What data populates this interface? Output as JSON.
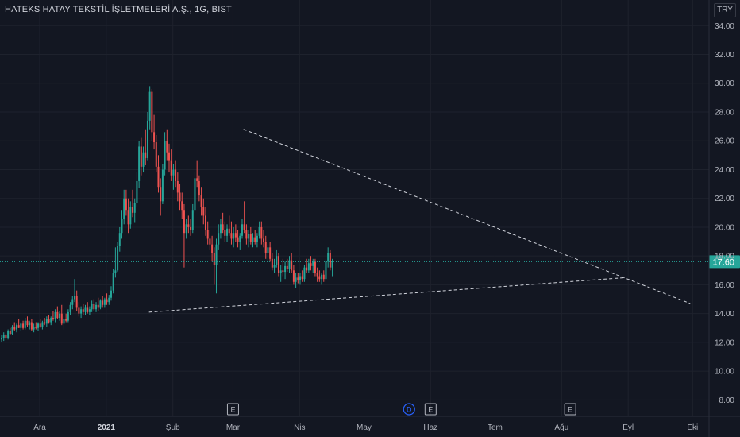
{
  "header": {
    "title": "HATEKS HATAY TEKSTİL İŞLETMELERİ A.Ş., 1G, BIST",
    "currency": "TRY"
  },
  "chart_data": {
    "type": "candlestick",
    "title": "HATEKS HATAY TEKSTİL İŞLETMELERİ A.Ş., 1G, BIST",
    "ylim": [
      7,
      35
    ],
    "yticks": [
      "34.00",
      "32.00",
      "30.00",
      "28.00",
      "26.00",
      "24.00",
      "22.00",
      "20.00",
      "18.00",
      "16.00",
      "14.00",
      "12.00",
      "10.00",
      "8.00"
    ],
    "ytick_values": [
      34,
      32,
      30,
      28,
      26,
      24,
      22,
      20,
      18,
      16,
      14,
      12,
      10,
      8
    ],
    "xticks": [
      {
        "label": "Ara",
        "day": 0,
        "bold": false
      },
      {
        "label": "2021",
        "day": 31,
        "bold": true
      },
      {
        "label": "Şub",
        "day": 62,
        "bold": false
      },
      {
        "label": "Mar",
        "day": 90,
        "bold": false
      },
      {
        "label": "Nis",
        "day": 121,
        "bold": false
      },
      {
        "label": "May",
        "day": 151,
        "bold": false
      },
      {
        "label": "Haz",
        "day": 182,
        "bold": false
      },
      {
        "label": "Tem",
        "day": 212,
        "bold": false
      },
      {
        "label": "Ağu",
        "day": 243,
        "bold": false
      },
      {
        "label": "Eyl",
        "day": 274,
        "bold": false
      },
      {
        "label": "Eki",
        "day": 304,
        "bold": false
      }
    ],
    "last_price": "17.60",
    "last_value": 17.6,
    "up_color": "#26a69a",
    "down_color": "#ef5350",
    "trendlines": [
      {
        "from": [
          52,
          14.1
        ],
        "to": [
          274,
          16.5
        ]
      },
      {
        "from": [
          96,
          26.8
        ],
        "to": [
          304,
          14.7
        ]
      }
    ],
    "event_markers": [
      {
        "label": "E",
        "day": 90
      },
      {
        "label": "D",
        "day": 172
      },
      {
        "label": "E",
        "day": 182
      },
      {
        "label": "E",
        "day": 247
      }
    ],
    "candles": [
      [
        -17,
        12.2,
        12.5,
        12.0,
        12.3
      ],
      [
        -16,
        12.3,
        12.7,
        12.1,
        12.5
      ],
      [
        -15,
        12.5,
        12.6,
        12.2,
        12.3
      ],
      [
        -14,
        12.3,
        12.9,
        12.2,
        12.8
      ],
      [
        -13,
        12.8,
        13.0,
        12.5,
        12.6
      ],
      [
        -12,
        12.6,
        13.2,
        12.5,
        13.1
      ],
      [
        -11,
        13.1,
        13.4,
        12.8,
        12.9
      ],
      [
        -10,
        12.9,
        13.3,
        12.7,
        13.2
      ],
      [
        -9,
        13.2,
        13.6,
        13.0,
        13.0
      ],
      [
        -8,
        13.0,
        13.4,
        12.8,
        13.3
      ],
      [
        -7,
        13.3,
        13.5,
        12.9,
        13.0
      ],
      [
        -6,
        13.0,
        13.7,
        12.9,
        13.5
      ],
      [
        -5,
        13.5,
        13.8,
        13.1,
        13.2
      ],
      [
        -4,
        13.2,
        13.5,
        12.9,
        13.4
      ],
      [
        -3,
        13.4,
        13.6,
        12.8,
        12.9
      ],
      [
        -2,
        12.9,
        13.3,
        12.7,
        13.1
      ],
      [
        -1,
        13.1,
        13.4,
        12.9,
        13.0
      ],
      [
        0,
        13.0,
        13.4,
        12.8,
        13.3
      ],
      [
        1,
        13.3,
        13.6,
        13.0,
        13.1
      ],
      [
        2,
        13.1,
        13.5,
        12.9,
        13.4
      ],
      [
        3,
        13.4,
        13.7,
        13.2,
        13.3
      ],
      [
        4,
        13.3,
        13.8,
        13.1,
        13.6
      ],
      [
        5,
        13.6,
        13.9,
        13.3,
        13.4
      ],
      [
        6,
        13.4,
        13.8,
        13.2,
        13.7
      ],
      [
        7,
        13.7,
        14.2,
        13.5,
        13.6
      ],
      [
        8,
        13.6,
        14.3,
        13.4,
        14.1
      ],
      [
        9,
        14.1,
        14.5,
        13.6,
        13.7
      ],
      [
        10,
        13.7,
        14.2,
        13.5,
        14.0
      ],
      [
        11,
        14.0,
        14.6,
        13.2,
        13.3
      ],
      [
        12,
        13.3,
        13.8,
        12.9,
        13.6
      ],
      [
        13,
        13.6,
        14.0,
        13.4,
        13.5
      ],
      [
        14,
        13.5,
        14.3,
        13.4,
        14.1
      ],
      [
        15,
        14.1,
        14.8,
        13.9,
        14.6
      ],
      [
        16,
        14.6,
        15.2,
        14.3,
        15.0
      ],
      [
        17,
        15.0,
        16.4,
        14.8,
        15.2
      ],
      [
        18,
        15.2,
        15.6,
        14.2,
        14.4
      ],
      [
        19,
        14.4,
        14.8,
        13.8,
        14.0
      ],
      [
        20,
        14.0,
        14.5,
        13.7,
        14.3
      ],
      [
        21,
        14.3,
        14.7,
        13.9,
        14.1
      ],
      [
        22,
        14.1,
        14.6,
        13.9,
        14.4
      ],
      [
        23,
        14.4,
        14.8,
        14.0,
        14.1
      ],
      [
        24,
        14.1,
        14.5,
        13.9,
        14.3
      ],
      [
        25,
        14.3,
        14.9,
        14.1,
        14.7
      ],
      [
        26,
        14.7,
        15.0,
        14.2,
        14.3
      ],
      [
        27,
        14.3,
        14.8,
        14.1,
        14.6
      ],
      [
        28,
        14.6,
        15.1,
        14.2,
        14.4
      ],
      [
        29,
        14.4,
        15.0,
        14.3,
        14.9
      ],
      [
        30,
        14.9,
        15.2,
        14.4,
        14.6
      ],
      [
        31,
        14.6,
        15.1,
        14.4,
        15.0
      ],
      [
        32,
        15.0,
        15.4,
        14.6,
        14.8
      ],
      [
        33,
        14.8,
        15.3,
        14.6,
        15.1
      ],
      [
        34,
        15.1,
        15.9,
        14.9,
        15.6
      ],
      [
        35,
        15.6,
        17.1,
        15.4,
        16.8
      ],
      [
        36,
        16.8,
        18.6,
        16.5,
        17.0
      ],
      [
        37,
        17.0,
        19.0,
        16.9,
        18.7
      ],
      [
        38,
        18.7,
        20.0,
        18.3,
        19.6
      ],
      [
        39,
        19.6,
        21.2,
        19.2,
        20.6
      ],
      [
        40,
        20.6,
        22.6,
        20.2,
        22.0
      ],
      [
        41,
        22.0,
        22.6,
        20.8,
        21.2
      ],
      [
        42,
        21.2,
        22.0,
        19.6,
        20.2
      ],
      [
        43,
        20.2,
        21.8,
        19.9,
        21.4
      ],
      [
        44,
        21.4,
        22.6,
        20.7,
        21.0
      ],
      [
        45,
        21.0,
        22.0,
        20.3,
        21.7
      ],
      [
        46,
        21.7,
        23.8,
        21.4,
        23.2
      ],
      [
        47,
        23.2,
        26.0,
        22.7,
        25.6
      ],
      [
        48,
        25.6,
        26.2,
        23.6,
        24.2
      ],
      [
        49,
        24.2,
        25.6,
        23.8,
        25.2
      ],
      [
        50,
        25.2,
        26.8,
        24.3,
        24.8
      ],
      [
        51,
        24.8,
        28.0,
        24.6,
        27.4
      ],
      [
        52,
        27.4,
        29.8,
        26.8,
        29.4
      ],
      [
        53,
        29.4,
        29.6,
        26.0,
        26.6
      ],
      [
        54,
        26.6,
        27.8,
        25.4,
        25.9
      ],
      [
        55,
        25.9,
        26.4,
        23.8,
        24.2
      ],
      [
        56,
        24.2,
        25.0,
        22.4,
        22.8
      ],
      [
        57,
        22.8,
        23.4,
        20.8,
        21.8
      ],
      [
        58,
        21.8,
        24.4,
        21.6,
        24.0
      ],
      [
        59,
        24.0,
        26.6,
        23.6,
        26.0
      ],
      [
        60,
        26.0,
        26.8,
        24.6,
        25.2
      ],
      [
        61,
        25.2,
        25.8,
        23.8,
        24.6
      ],
      [
        62,
        24.6,
        25.4,
        23.2,
        23.6
      ],
      [
        63,
        23.6,
        24.4,
        22.6,
        24.0
      ],
      [
        64,
        24.0,
        24.6,
        22.8,
        23.2
      ],
      [
        65,
        23.2,
        23.8,
        21.8,
        22.4
      ],
      [
        66,
        22.4,
        23.0,
        21.2,
        21.8
      ],
      [
        67,
        21.8,
        22.4,
        20.6,
        21.2
      ],
      [
        68,
        21.2,
        21.6,
        17.2,
        19.6
      ],
      [
        69,
        19.6,
        20.6,
        19.2,
        20.2
      ],
      [
        70,
        20.2,
        20.8,
        19.6,
        20.0
      ],
      [
        71,
        20.0,
        20.6,
        19.4,
        19.8
      ],
      [
        72,
        19.8,
        21.6,
        19.6,
        21.2
      ],
      [
        73,
        21.2,
        23.8,
        21.0,
        23.4
      ],
      [
        74,
        23.4,
        24.6,
        22.8,
        23.2
      ],
      [
        75,
        23.2,
        23.6,
        21.8,
        22.2
      ],
      [
        76,
        22.2,
        22.8,
        20.8,
        21.4
      ],
      [
        77,
        21.4,
        22.0,
        20.2,
        20.8
      ],
      [
        78,
        20.8,
        21.4,
        19.4,
        19.8
      ],
      [
        79,
        19.8,
        20.4,
        18.8,
        19.2
      ],
      [
        80,
        19.2,
        19.8,
        18.4,
        18.8
      ],
      [
        81,
        18.8,
        19.4,
        17.6,
        18.2
      ],
      [
        82,
        18.2,
        18.6,
        16.0,
        17.4
      ],
      [
        83,
        17.4,
        19.2,
        15.4,
        18.8
      ],
      [
        84,
        18.8,
        20.2,
        18.4,
        19.6
      ],
      [
        85,
        19.6,
        20.6,
        19.2,
        20.2
      ],
      [
        86,
        20.2,
        21.0,
        19.6,
        19.8
      ],
      [
        87,
        19.8,
        20.4,
        19.0,
        19.4
      ],
      [
        88,
        19.4,
        20.2,
        19.0,
        19.9
      ],
      [
        89,
        19.9,
        20.8,
        19.4,
        19.6
      ],
      [
        90,
        19.6,
        20.4,
        18.8,
        19.2
      ],
      [
        91,
        19.2,
        20.0,
        18.6,
        19.6
      ],
      [
        92,
        19.6,
        20.2,
        19.0,
        19.3
      ],
      [
        93,
        19.3,
        19.8,
        18.6,
        19.0
      ],
      [
        94,
        19.0,
        19.6,
        18.4,
        19.4
      ],
      [
        95,
        19.4,
        20.6,
        19.2,
        20.2
      ],
      [
        96,
        20.2,
        21.8,
        19.6,
        19.8
      ],
      [
        97,
        19.8,
        20.2,
        18.8,
        19.2
      ],
      [
        98,
        19.2,
        19.8,
        18.6,
        19.5
      ],
      [
        99,
        19.5,
        20.0,
        18.8,
        19.0
      ],
      [
        100,
        19.0,
        19.6,
        18.6,
        19.3
      ],
      [
        101,
        19.3,
        19.8,
        18.8,
        19.0
      ],
      [
        102,
        19.0,
        19.6,
        18.6,
        19.4
      ],
      [
        103,
        19.4,
        20.4,
        19.2,
        20.0
      ],
      [
        104,
        20.0,
        20.4,
        18.8,
        19.2
      ],
      [
        105,
        19.2,
        19.8,
        18.6,
        19.0
      ],
      [
        106,
        19.0,
        19.4,
        17.8,
        18.2
      ],
      [
        107,
        18.2,
        18.8,
        17.6,
        18.6
      ],
      [
        108,
        18.6,
        19.0,
        17.6,
        17.8
      ],
      [
        109,
        17.8,
        18.2,
        17.0,
        17.2
      ],
      [
        110,
        17.2,
        17.8,
        16.8,
        17.4
      ],
      [
        111,
        17.4,
        18.4,
        17.2,
        18.0
      ],
      [
        112,
        18.0,
        18.2,
        16.6,
        16.8
      ],
      [
        113,
        16.8,
        17.4,
        16.2,
        17.0
      ],
      [
        114,
        17.0,
        17.8,
        16.6,
        16.9
      ],
      [
        115,
        16.9,
        17.6,
        16.4,
        17.3
      ],
      [
        116,
        17.3,
        17.8,
        16.9,
        17.1
      ],
      [
        117,
        17.1,
        18.0,
        16.8,
        17.7
      ],
      [
        118,
        17.7,
        18.2,
        16.8,
        17.0
      ],
      [
        119,
        17.0,
        17.4,
        16.0,
        16.2
      ],
      [
        120,
        16.2,
        16.8,
        15.8,
        16.5
      ],
      [
        121,
        16.5,
        16.8,
        16.1,
        16.3
      ],
      [
        122,
        16.3,
        16.8,
        16.0,
        16.6
      ],
      [
        123,
        16.6,
        17.0,
        16.2,
        16.4
      ],
      [
        124,
        16.4,
        17.4,
        16.2,
        17.2
      ],
      [
        125,
        17.2,
        17.8,
        16.8,
        17.0
      ],
      [
        126,
        17.0,
        17.8,
        16.8,
        17.5
      ],
      [
        127,
        17.5,
        18.0,
        17.0,
        17.3
      ],
      [
        128,
        17.3,
        17.8,
        16.8,
        17.6
      ],
      [
        129,
        17.6,
        17.8,
        16.6,
        16.8
      ],
      [
        130,
        16.8,
        17.2,
        16.2,
        16.6
      ],
      [
        131,
        16.6,
        17.0,
        16.2,
        16.4
      ],
      [
        132,
        16.4,
        16.8,
        16.0,
        16.7
      ],
      [
        133,
        16.7,
        17.0,
        16.2,
        16.4
      ],
      [
        134,
        16.4,
        17.8,
        16.2,
        17.6
      ],
      [
        135,
        17.6,
        18.6,
        17.2,
        18.2
      ],
      [
        136,
        18.2,
        18.4,
        17.0,
        17.2
      ],
      [
        137,
        17.2,
        17.8,
        16.6,
        17.6
      ]
    ]
  }
}
